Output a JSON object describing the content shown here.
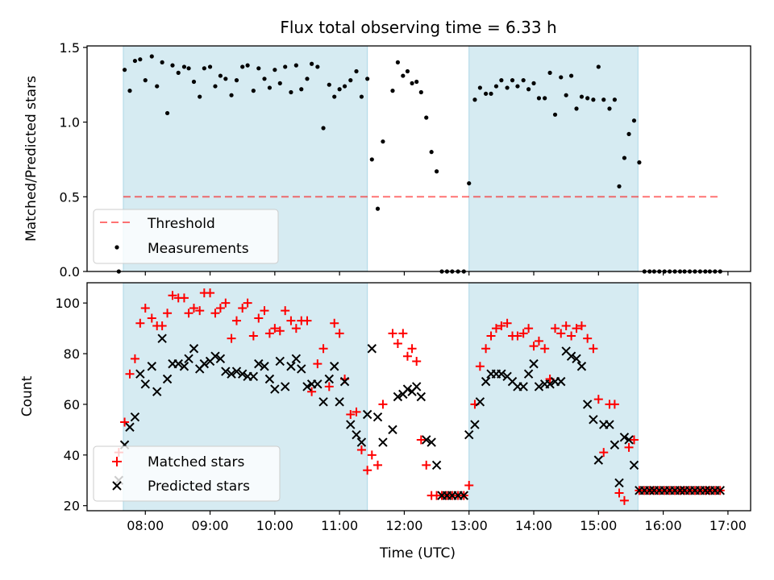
{
  "title": "Flux total observing time = 6.33 h",
  "colors": {
    "span": "#add8e6",
    "threshold": "#ff0000",
    "measurement": "#000000",
    "matched": "#ff0000",
    "predicted": "#000000"
  },
  "chart_data": [
    {
      "type": "scatter",
      "panel": "top",
      "ylabel": "Matched/Predicted stars",
      "xlabel": "",
      "xlim": [
        7.1,
        17.35
      ],
      "ylim": [
        0,
        1.51
      ],
      "yticks": [
        0.0,
        0.5,
        1.0,
        1.5
      ],
      "ytick_labels": [
        "0.0",
        "0.5",
        "1.0",
        "1.5"
      ],
      "shaded_spans": [
        [
          7.66,
          11.43
        ],
        [
          13.0,
          15.61
        ]
      ],
      "threshold": {
        "name": "Threshold",
        "value": 0.5,
        "x_range": [
          7.66,
          16.85
        ]
      },
      "legend": {
        "location": "lower-left",
        "entries": [
          "Threshold",
          "Measurements"
        ]
      },
      "series": [
        {
          "name": "Measurements",
          "x": [
            7.59,
            7.68,
            7.76,
            7.84,
            7.92,
            8.0,
            8.1,
            8.18,
            8.26,
            8.34,
            8.42,
            8.51,
            8.6,
            8.67,
            8.75,
            8.84,
            8.91,
            9.0,
            9.08,
            9.16,
            9.24,
            9.33,
            9.41,
            9.5,
            9.58,
            9.67,
            9.75,
            9.84,
            9.92,
            10.0,
            10.08,
            10.16,
            10.25,
            10.33,
            10.41,
            10.5,
            10.57,
            10.66,
            10.75,
            10.84,
            10.92,
            11.0,
            11.08,
            11.17,
            11.26,
            11.34,
            11.43,
            11.5,
            11.59,
            11.67,
            11.82,
            11.9,
            11.98,
            12.05,
            12.12,
            12.19,
            12.26,
            12.34,
            12.42,
            12.5,
            12.58,
            12.66,
            12.74,
            12.83,
            12.92,
            13.0,
            13.09,
            13.17,
            13.26,
            13.34,
            13.42,
            13.5,
            13.59,
            13.67,
            13.75,
            13.84,
            13.92,
            14.0,
            14.08,
            14.17,
            14.25,
            14.33,
            14.42,
            14.5,
            14.58,
            14.66,
            14.74,
            14.83,
            14.92,
            15.0,
            15.08,
            15.17,
            15.25,
            15.32,
            15.4,
            15.47,
            15.55,
            15.63,
            15.71,
            15.79,
            15.86,
            15.94,
            16.02,
            16.1,
            16.18,
            16.26,
            16.33,
            16.41,
            16.49,
            16.57,
            16.65,
            16.72,
            16.8,
            16.88
          ],
          "y": [
            0.0,
            1.35,
            1.21,
            1.41,
            1.42,
            1.28,
            1.44,
            1.24,
            1.4,
            1.06,
            1.38,
            1.33,
            1.37,
            1.36,
            1.27,
            1.17,
            1.36,
            1.37,
            1.24,
            1.31,
            1.29,
            1.18,
            1.28,
            1.37,
            1.38,
            1.21,
            1.36,
            1.29,
            1.23,
            1.35,
            1.26,
            1.37,
            1.2,
            1.38,
            1.22,
            1.29,
            1.39,
            1.37,
            0.96,
            1.25,
            1.17,
            1.22,
            1.24,
            1.28,
            1.34,
            1.17,
            1.29,
            0.75,
            0.42,
            0.87,
            1.21,
            1.4,
            1.31,
            1.34,
            1.26,
            1.27,
            1.2,
            1.03,
            0.8,
            0.67,
            0.0,
            0.0,
            0.0,
            0.0,
            0.0,
            0.59,
            1.15,
            1.23,
            1.19,
            1.19,
            1.24,
            1.28,
            1.23,
            1.28,
            1.24,
            1.28,
            1.22,
            1.26,
            1.16,
            1.16,
            1.33,
            1.05,
            1.3,
            1.18,
            1.31,
            1.09,
            1.17,
            1.16,
            1.15,
            1.37,
            1.15,
            1.09,
            1.15,
            0.57,
            0.76,
            0.92,
            1.01,
            0.73,
            0.0,
            0.0,
            0.0,
            0.0,
            0.0,
            0.0,
            0.0,
            0.0,
            0.0,
            0.0,
            0.0,
            0.0,
            0.0,
            0.0,
            0.0,
            0.0
          ]
        }
      ]
    },
    {
      "type": "scatter",
      "panel": "bottom",
      "ylabel": "Count",
      "xlabel": "Time (UTC)",
      "xlim": [
        7.1,
        17.35
      ],
      "ylim": [
        18,
        108
      ],
      "yticks": [
        20,
        40,
        60,
        80,
        100
      ],
      "ytick_labels": [
        "20",
        "40",
        "60",
        "80",
        "100"
      ],
      "xticks": [
        8,
        9,
        10,
        11,
        12,
        13,
        14,
        15,
        16,
        17
      ],
      "xtick_labels": [
        "08:00",
        "09:00",
        "10:00",
        "11:00",
        "12:00",
        "13:00",
        "14:00",
        "15:00",
        "16:00",
        "17:00"
      ],
      "shaded_spans": [
        [
          7.66,
          11.43
        ],
        [
          13.0,
          15.61
        ]
      ],
      "legend": {
        "location": "lower-left",
        "entries": [
          "Matched stars",
          "Predicted stars"
        ]
      },
      "series": [
        {
          "name": "Matched stars",
          "marker": "plus",
          "x": [
            7.59,
            7.68,
            7.76,
            7.84,
            7.92,
            8.0,
            8.1,
            8.18,
            8.26,
            8.34,
            8.42,
            8.51,
            8.6,
            8.67,
            8.75,
            8.84,
            8.91,
            9.0,
            9.08,
            9.16,
            9.24,
            9.33,
            9.41,
            9.5,
            9.58,
            9.67,
            9.75,
            9.84,
            9.92,
            10.0,
            10.08,
            10.16,
            10.25,
            10.33,
            10.41,
            10.5,
            10.57,
            10.66,
            10.75,
            10.84,
            10.92,
            11.0,
            11.08,
            11.17,
            11.26,
            11.34,
            11.43,
            11.5,
            11.59,
            11.67,
            11.82,
            11.9,
            11.98,
            12.05,
            12.12,
            12.19,
            12.26,
            12.34,
            12.42,
            12.5,
            12.58,
            12.66,
            12.74,
            12.83,
            12.92,
            13.0,
            13.09,
            13.17,
            13.26,
            13.34,
            13.42,
            13.5,
            13.59,
            13.67,
            13.75,
            13.84,
            13.92,
            14.0,
            14.08,
            14.17,
            14.25,
            14.33,
            14.42,
            14.5,
            14.58,
            14.66,
            14.74,
            14.83,
            14.92,
            15.0,
            15.08,
            15.17,
            15.25,
            15.32,
            15.4,
            15.47,
            15.55,
            15.63,
            15.71,
            15.79,
            15.86,
            15.94,
            16.02,
            16.1,
            16.18,
            16.26,
            16.33,
            16.41,
            16.49,
            16.57,
            16.65,
            16.72,
            16.8,
            16.88
          ],
          "y": [
            41,
            53,
            72,
            78,
            92,
            98,
            94,
            91,
            91,
            96,
            103,
            102,
            102,
            96,
            98,
            97,
            104,
            104,
            96,
            98,
            100,
            86,
            93,
            98,
            100,
            87,
            94,
            97,
            88,
            90,
            89,
            97,
            93,
            90,
            93,
            93,
            65,
            76,
            82,
            67,
            92,
            88,
            70,
            56,
            57,
            42,
            34,
            40,
            36,
            60,
            88,
            84,
            88,
            79,
            82,
            77,
            46,
            36,
            24,
            24,
            24,
            24,
            24,
            24,
            24,
            28,
            60,
            75,
            82,
            87,
            90,
            91,
            92,
            87,
            87,
            88,
            90,
            83,
            85,
            82,
            70,
            90,
            88,
            91,
            87,
            90,
            91,
            86,
            82,
            62,
            41,
            60,
            60,
            25,
            22,
            43,
            46,
            26,
            26,
            26,
            26,
            26,
            26,
            26,
            26,
            26,
            26,
            26,
            26,
            26,
            26,
            26,
            26,
            26
          ]
        },
        {
          "name": "Predicted stars",
          "marker": "x",
          "x": [
            7.59,
            7.68,
            7.76,
            7.84,
            7.92,
            8.0,
            8.1,
            8.18,
            8.26,
            8.34,
            8.42,
            8.51,
            8.6,
            8.67,
            8.75,
            8.84,
            8.91,
            9.0,
            9.08,
            9.16,
            9.24,
            9.33,
            9.41,
            9.5,
            9.58,
            9.67,
            9.75,
            9.84,
            9.92,
            10.0,
            10.08,
            10.16,
            10.25,
            10.33,
            10.41,
            10.5,
            10.57,
            10.66,
            10.75,
            10.84,
            10.92,
            11.0,
            11.08,
            11.17,
            11.26,
            11.34,
            11.43,
            11.5,
            11.59,
            11.67,
            11.82,
            11.9,
            11.98,
            12.05,
            12.12,
            12.19,
            12.26,
            12.34,
            12.42,
            12.5,
            12.58,
            12.66,
            12.74,
            12.83,
            12.92,
            13.0,
            13.09,
            13.17,
            13.26,
            13.34,
            13.42,
            13.5,
            13.59,
            13.67,
            13.75,
            13.84,
            13.92,
            14.0,
            14.08,
            14.17,
            14.25,
            14.33,
            14.42,
            14.5,
            14.58,
            14.66,
            14.74,
            14.83,
            14.92,
            15.0,
            15.08,
            15.17,
            15.25,
            15.32,
            15.4,
            15.47,
            15.55,
            15.63,
            15.71,
            15.79,
            15.86,
            15.94,
            16.02,
            16.1,
            16.18,
            16.26,
            16.33,
            16.41,
            16.49,
            16.57,
            16.65,
            16.72,
            16.8,
            16.88
          ],
          "y": [
            30,
            44,
            51,
            55,
            72,
            68,
            75,
            65,
            86,
            70,
            76,
            76,
            75,
            78,
            82,
            74,
            76,
            77,
            79,
            78,
            73,
            72,
            73,
            72,
            71,
            71,
            76,
            75,
            70,
            66,
            77,
            67,
            75,
            78,
            74,
            67,
            68,
            68,
            61,
            70,
            75,
            61,
            69,
            52,
            48,
            45,
            56,
            82,
            55,
            45,
            50,
            63,
            64,
            66,
            65,
            67,
            63,
            46,
            45,
            36,
            24,
            24,
            24,
            24,
            24,
            48,
            52,
            61,
            69,
            72,
            72,
            72,
            71,
            69,
            67,
            67,
            72,
            76,
            67,
            68,
            68,
            69,
            69,
            81,
            79,
            78,
            75,
            60,
            54,
            38,
            52,
            52,
            44,
            29,
            47,
            46,
            36,
            26,
            26,
            26,
            26,
            26,
            26,
            26,
            26,
            26,
            26,
            26,
            26,
            26,
            26,
            26,
            26,
            26
          ]
        }
      ]
    }
  ]
}
